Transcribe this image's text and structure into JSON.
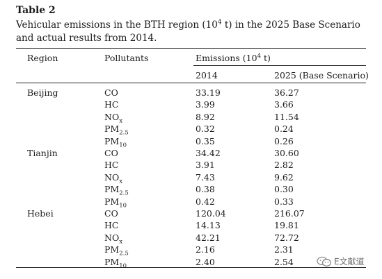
{
  "table_label": "Table 2",
  "caption": {
    "part1": "Vehicular emissions in the BTH region (10",
    "sup": "4",
    "part2": " t) in the 2025 Base Scenario and actual results from 2014."
  },
  "header": {
    "region": "Region",
    "pollutants": "Pollutants",
    "emissions_pre": "Emissions (10",
    "emissions_sup": "4",
    "emissions_post": " t)",
    "col_2014": "2014",
    "col_2025": "2025 (Base Scenario)"
  },
  "rows": [
    {
      "region": "Beijing",
      "p_main": "CO",
      "p_sub": "",
      "v2014": "33.19",
      "v2025": "36.27"
    },
    {
      "region": "",
      "p_main": "HC",
      "p_sub": "",
      "v2014": "3.99",
      "v2025": "3.66"
    },
    {
      "region": "",
      "p_main": "NO",
      "p_sub": "x",
      "v2014": "8.92",
      "v2025": "11.54"
    },
    {
      "region": "",
      "p_main": "PM",
      "p_sub": "2.5",
      "v2014": "0.32",
      "v2025": "0.24"
    },
    {
      "region": "",
      "p_main": "PM",
      "p_sub": "10",
      "v2014": "0.35",
      "v2025": "0.26"
    },
    {
      "region": "Tianjin",
      "p_main": "CO",
      "p_sub": "",
      "v2014": "34.42",
      "v2025": "30.60"
    },
    {
      "region": "",
      "p_main": "HC",
      "p_sub": "",
      "v2014": "3.91",
      "v2025": "2.82"
    },
    {
      "region": "",
      "p_main": "NO",
      "p_sub": "x",
      "v2014": "7.43",
      "v2025": "9.62"
    },
    {
      "region": "",
      "p_main": "PM",
      "p_sub": "2.5",
      "v2014": "0.38",
      "v2025": "0.30"
    },
    {
      "region": "",
      "p_main": "PM",
      "p_sub": "10",
      "v2014": "0.42",
      "v2025": "0.33"
    },
    {
      "region": "Hebei",
      "p_main": "CO",
      "p_sub": "",
      "v2014": "120.04",
      "v2025": "216.07"
    },
    {
      "region": "",
      "p_main": "HC",
      "p_sub": "",
      "v2014": "14.13",
      "v2025": "19.81"
    },
    {
      "region": "",
      "p_main": "NO",
      "p_sub": "x",
      "v2014": "42.21",
      "v2025": "72.72"
    },
    {
      "region": "",
      "p_main": "PM",
      "p_sub": "2.5",
      "v2014": "2.16",
      "v2025": "2.31"
    },
    {
      "region": "",
      "p_main": "PM",
      "p_sub": "10",
      "v2014": "2.40",
      "v2025": "2.54"
    }
  ],
  "watermark": {
    "text": "E文献道",
    "icon": "wechat-icon"
  }
}
